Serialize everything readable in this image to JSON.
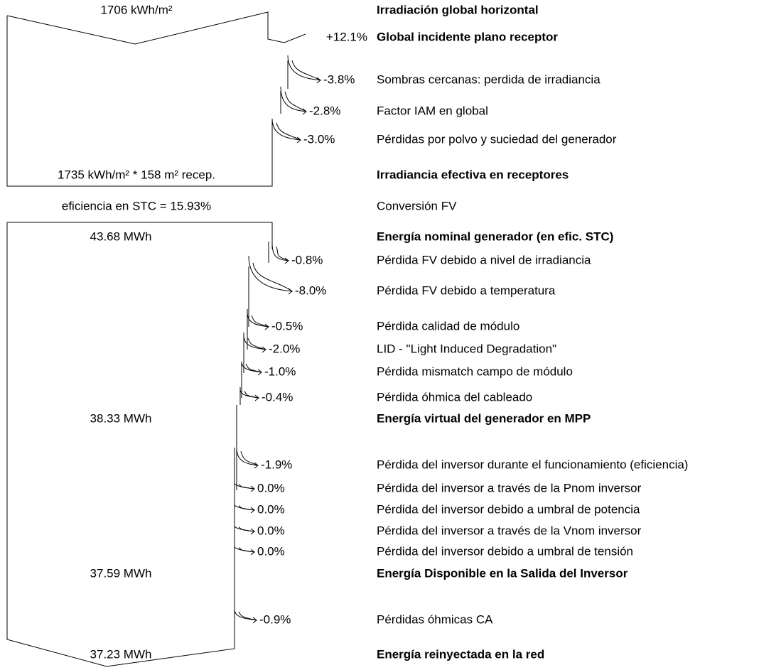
{
  "steps": [
    {
      "label": "Irradiación global horizontal",
      "amount": "1706 kWh/m²",
      "bold": true
    },
    {
      "label": "Global incidente plano receptor",
      "change": "+12.1%",
      "bold": true
    },
    {
      "label": "Sombras cercanas: perdida de irradiancia",
      "change": "-3.8%"
    },
    {
      "label": "Factor IAM en global",
      "change": "-2.8%"
    },
    {
      "label": "Pérdidas por polvo y suciedad del generador",
      "change": "-3.0%"
    },
    {
      "label": "Irradiancia efectiva en receptores",
      "amount": "1735 kWh/m² * 158 m² recep.",
      "bold": true
    },
    {
      "label": "Conversión FV",
      "amount": "eficiencia en STC = 15.93%"
    },
    {
      "label": "Energía nominal generador (en efic. STC)",
      "amount": "43.68 MWh",
      "bold": true
    },
    {
      "label": "Pérdida FV debido a nivel de irradiancia",
      "change": "-0.8%"
    },
    {
      "label": "Pérdida FV debido a temperatura",
      "change": "-8.0%"
    },
    {
      "label": "Pérdida calidad de módulo",
      "change": "-0.5%"
    },
    {
      "label": "LID - \"Light Induced Degradation\"",
      "change": "-2.0%"
    },
    {
      "label": "Pérdida mismatch campo de módulo",
      "change": "-1.0%"
    },
    {
      "label": "Pérdida óhmica del cableado",
      "change": "-0.4%"
    },
    {
      "label": "Energía virtual del generador en MPP",
      "amount": "38.33 MWh",
      "bold": true
    },
    {
      "label": "Pérdida del inversor durante el funcionamiento (eficiencia)",
      "change": "-1.9%"
    },
    {
      "label": "Pérdida del inversor a través de la Pnom inversor",
      "change": "0.0%"
    },
    {
      "label": "Pérdida del inversor debido a umbral de potencia",
      "change": "0.0%"
    },
    {
      "label": "Pérdida del inversor a través de la Vnom inversor",
      "change": "0.0%"
    },
    {
      "label": "Pérdida del inversor debido a umbral de tensión",
      "change": "0.0%"
    },
    {
      "label": "Energía Disponible en la Salida del Inversor",
      "amount": "37.59 MWh",
      "bold": true
    },
    {
      "label": "Pérdidas óhmicas CA",
      "change": "-0.9%"
    },
    {
      "label": "Energía reinyectada en la red",
      "amount": "37.23 MWh",
      "bold": true
    }
  ]
}
